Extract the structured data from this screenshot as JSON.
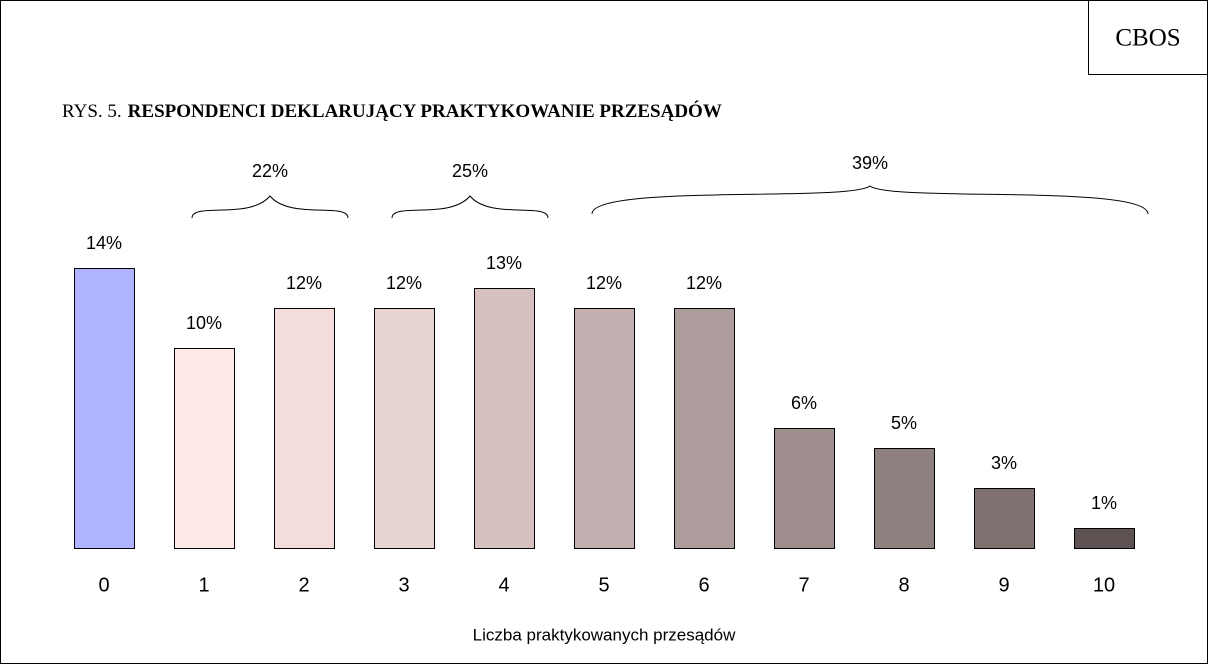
{
  "chart_data": {
    "type": "bar",
    "source": "CBOS",
    "figure_label": "RYS. 5.",
    "title": "RESPONDENCI DEKLARUJĄCY PRAKTYKOWANIE PRZESĄDÓW",
    "x_label": "Liczba praktykowanych przesądów",
    "categories": [
      "0",
      "1",
      "2",
      "3",
      "4",
      "5",
      "6",
      "7",
      "8",
      "9",
      "10"
    ],
    "values": [
      14,
      10,
      12,
      12,
      13,
      12,
      12,
      6,
      5,
      3,
      1
    ],
    "value_labels": [
      "14%",
      "10%",
      "12%",
      "12%",
      "13%",
      "12%",
      "12%",
      "6%",
      "5%",
      "3%",
      "1%"
    ],
    "colors": [
      "#b0b3ff",
      "#ffe8e8",
      "#f4dcdc",
      "#e9d4d4",
      "#d6c0c0",
      "#c3afaf",
      "#ad9c9c",
      "#9e8e8e",
      "#8f8080",
      "#807171",
      "#5f5252"
    ],
    "groups": [
      {
        "value": 22,
        "label": "22%",
        "from": "1",
        "to": "2"
      },
      {
        "value": 25,
        "label": "25%",
        "from": "3",
        "to": "4"
      },
      {
        "value": 39,
        "label": "39%",
        "from": "5",
        "to": "10"
      }
    ]
  }
}
